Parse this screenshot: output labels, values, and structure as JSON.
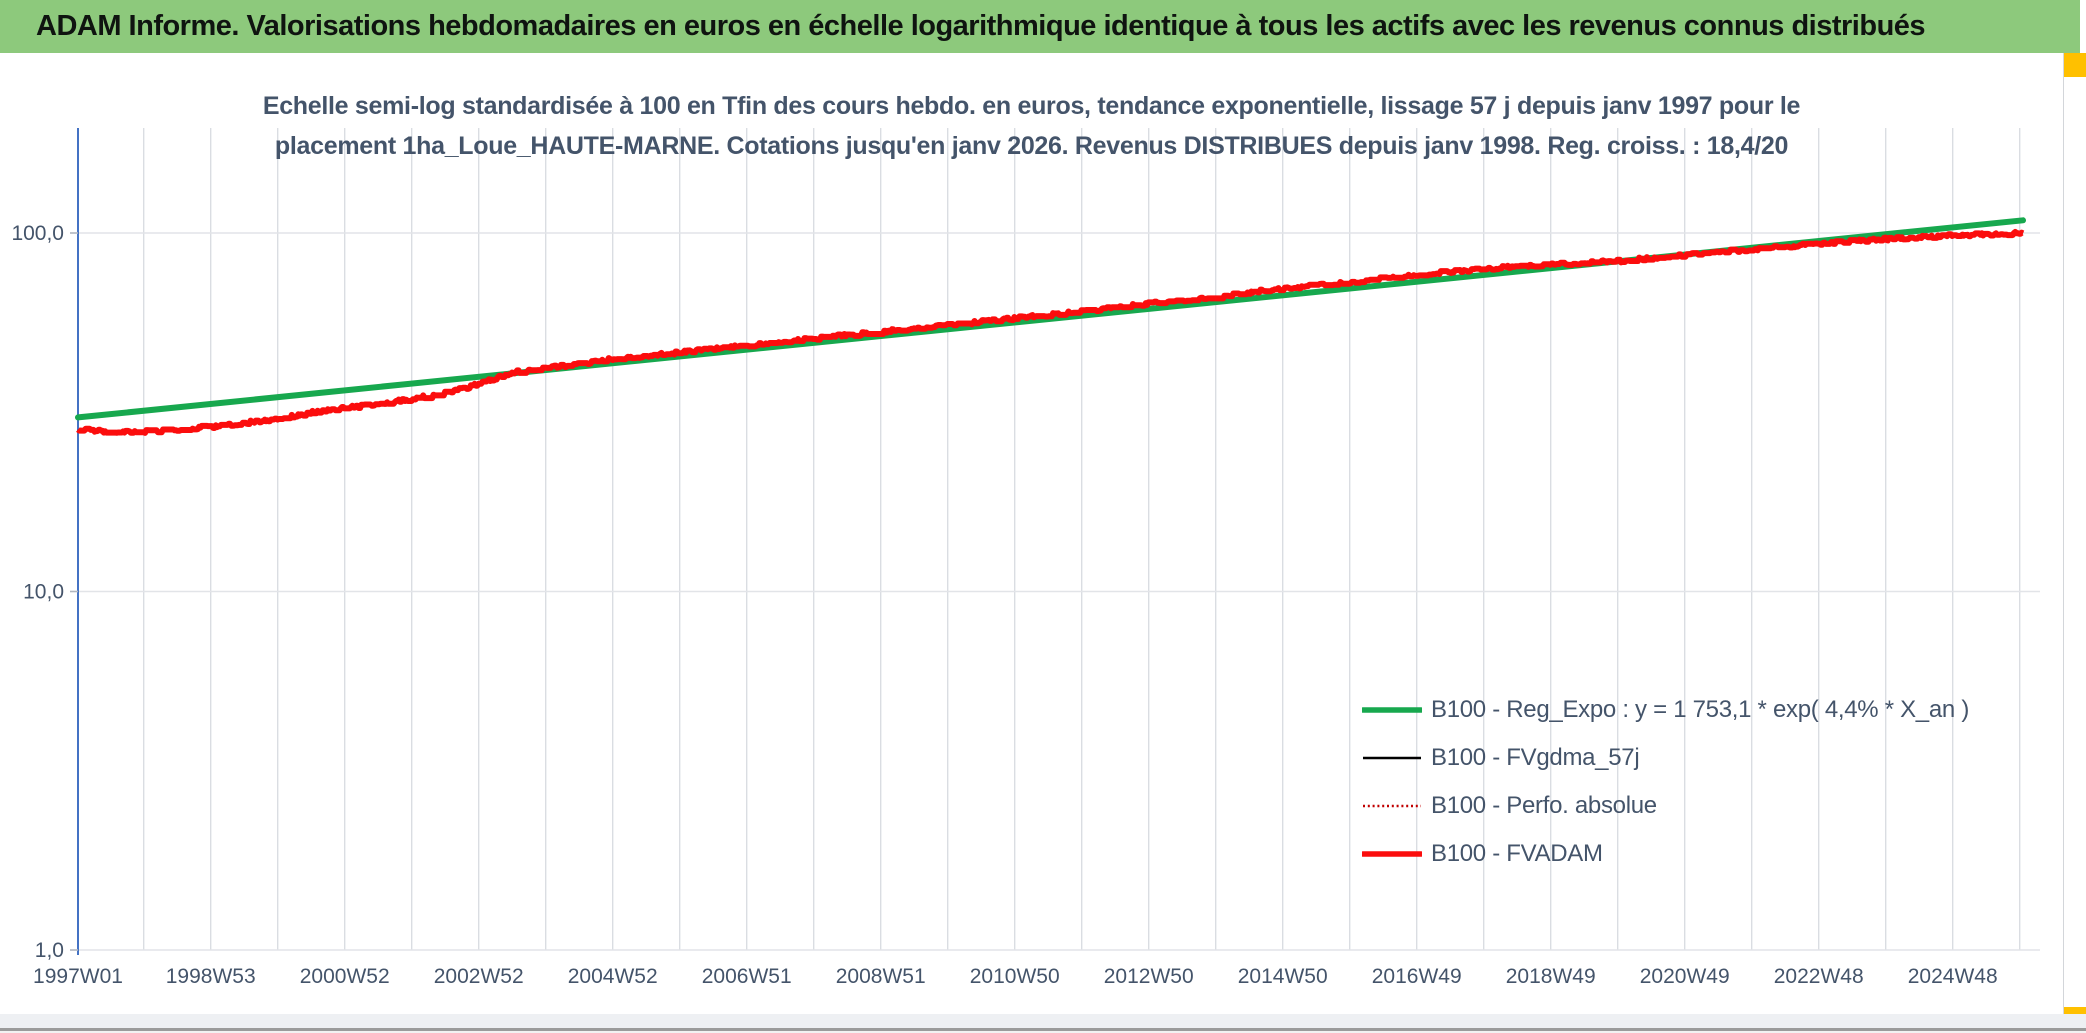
{
  "header": {
    "title": "ADAM Informe. Valorisations hebdomadaires en euros en échelle logarithmique identique à tous les actifs avec les revenus connus distribués",
    "bar_color": "#8dc97c",
    "accent_color": "#FFC000"
  },
  "subtitle": {
    "line1": "Echelle semi-log standardisée à 100 en Tfin des cours hebdo. en euros, tendance exponentielle, lissage 57 j depuis janv 1997 pour le",
    "line2": "placement 1ha_Loue_HAUTE-MARNE. Cotations jusqu'en janv 2026. Revenus DISTRIBUES depuis janv 1998. Reg. croiss. : 18,4/20"
  },
  "chart_data": {
    "type": "line",
    "title": "Echelle semi-log standardisée à 100 en Tfin des cours hebdo. en euros, tendance exponentielle, lissage 57 j depuis janv 1997 pour le placement 1ha_Loue_HAUTE-MARNE. Cotations jusqu'en janv 2026. Revenus DISTRIBUES depuis janv 1998. Reg. croiss. : 18,4/20",
    "y_axis": {
      "scale": "log",
      "tick_labels": [
        "100,0",
        "10,0",
        "1,0"
      ],
      "tick_values": [
        100,
        10,
        1
      ],
      "range": [
        1,
        200
      ],
      "axis_color": "#4472C4"
    },
    "x_axis": {
      "tick_labels": [
        "1997W01",
        "1998W53",
        "2000W52",
        "2002W52",
        "2004W52",
        "2006W51",
        "2008W51",
        "2010W50",
        "2012W50",
        "2014W50",
        "2016W49",
        "2018W49",
        "2020W49",
        "2022W48",
        "2024W48"
      ],
      "tick_years": [
        1997.02,
        1999,
        2001,
        2003,
        2005,
        2007,
        2009,
        2011,
        2013,
        2015,
        2017,
        2019,
        2021,
        2023,
        2025
      ],
      "gridline_years_start": 1998,
      "gridline_years_end": 2026,
      "data_end_year": 2026.05
    },
    "grid": {
      "vertical": true,
      "horizontal_major_only": true,
      "color_v": "#dadde2",
      "color_h": "#e2e4e8"
    },
    "legend_position": "right-middle",
    "legend": [
      {
        "label": "B100 - Reg_Expo : y = 1 753,1 * exp( 4,4% *  X_an )",
        "color": "#17a84e",
        "style": "solid-thick"
      },
      {
        "label": "B100 - FVgdma_57j",
        "color": "#000000",
        "style": "solid-thin"
      },
      {
        "label": "B100 - Perfo. absolue",
        "color": "#c00000",
        "style": "dotted"
      },
      {
        "label": "B100 - FVADAM",
        "color": "#fb0d0d",
        "style": "solid-thick"
      }
    ],
    "series": [
      {
        "name": "B100 - Reg_Expo : y = 1 753,1 * exp( 4,4% *  X_an )",
        "color": "#17a84e",
        "style": "solid-thick",
        "render": "straight-log",
        "x": [
          1997.02,
          2026.05
        ],
        "values": [
          30.6,
          108.5
        ]
      },
      {
        "name": "B100 - FVgdma_57j",
        "color": "#000000",
        "style": "solid-thin",
        "render": "coincides-with-fvadam"
      },
      {
        "name": "B100 - Perfo. absolue",
        "color": "#c00000",
        "style": "dotted",
        "render": "coincides-with-fvadam"
      },
      {
        "name": "B100 - FVADAM",
        "color": "#fb0d0d",
        "style": "solid-thick",
        "render": "weekly-steps",
        "anchors": [
          [
            1997.02,
            28.3
          ],
          [
            1997.5,
            27.8
          ],
          [
            1998.1,
            28.0
          ],
          [
            1999.0,
            28.8
          ],
          [
            2000.0,
            30.3
          ],
          [
            2000.6,
            31.8
          ],
          [
            2001.2,
            32.8
          ],
          [
            2002.0,
            34.4
          ],
          [
            2002.8,
            36.9
          ],
          [
            2003.5,
            40.8
          ],
          [
            2004.2,
            42.4
          ],
          [
            2005.0,
            44.5
          ],
          [
            2006.0,
            46.4
          ],
          [
            2007.0,
            48.5
          ],
          [
            2008.0,
            50.8
          ],
          [
            2009.0,
            53.0
          ],
          [
            2010.0,
            55.3
          ],
          [
            2011.0,
            57.8
          ],
          [
            2012.0,
            60.5
          ],
          [
            2013.0,
            63.5
          ],
          [
            2014.0,
            66.5
          ],
          [
            2015.0,
            70.0
          ],
          [
            2016.0,
            73.0
          ],
          [
            2017.0,
            76.5
          ],
          [
            2018.0,
            79.5
          ],
          [
            2019.0,
            81.5
          ],
          [
            2020.0,
            83.5
          ],
          [
            2021.0,
            86.8
          ],
          [
            2022.0,
            90.0
          ],
          [
            2023.0,
            93.2
          ],
          [
            2024.0,
            96.2
          ],
          [
            2025.0,
            98.5
          ],
          [
            2026.05,
            99.8
          ]
        ]
      }
    ]
  }
}
